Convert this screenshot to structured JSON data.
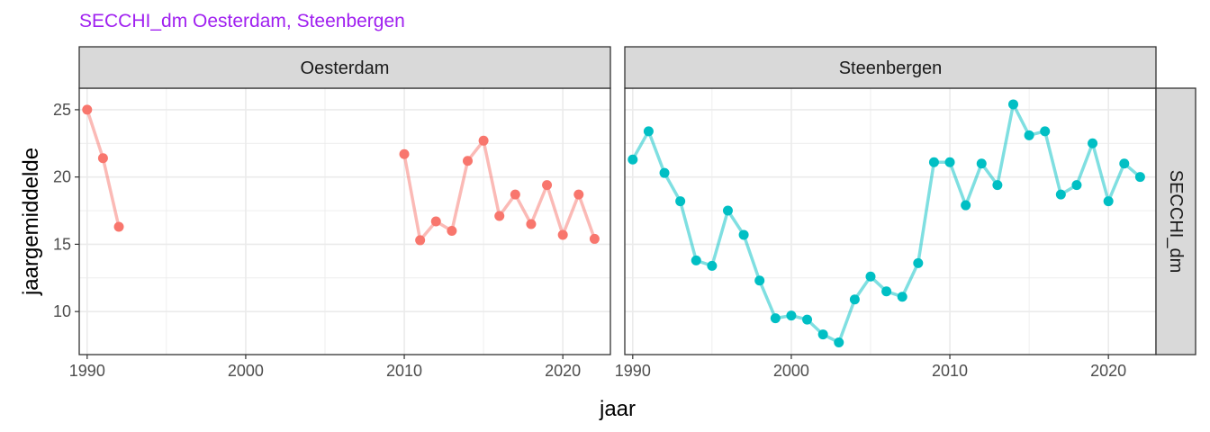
{
  "title": "SECCHI_dm Oesterdam, Steenbergen",
  "colors": {
    "title": "#a020f0",
    "oesterdam": "#f8766d",
    "steenbergen": "#00bfc4",
    "strip_fill": "#d9d9d9",
    "grid": "#ebebeb",
    "panel_border": "#333333"
  },
  "chart_data": {
    "type": "line",
    "xlabel": "jaar",
    "ylabel": "jaargemiddelde",
    "xlim": [
      1989.5,
      2023
    ],
    "ylim": [
      6.8,
      26.6
    ],
    "x_ticks": [
      1990,
      2000,
      2010,
      2020
    ],
    "x_tick_labels": [
      "1990",
      "2000",
      "2010",
      "2020"
    ],
    "y_ticks": [
      10,
      15,
      20,
      25
    ],
    "y_tick_labels": [
      "10",
      "15",
      "20",
      "25"
    ],
    "row_strip": "SECCHI_dm",
    "legend": "none",
    "grid": true,
    "series": [
      {
        "name": "Oesterdam",
        "segments": [
          {
            "x": [
              1990,
              1991,
              1992
            ],
            "y": [
              25.0,
              21.4,
              16.3
            ]
          },
          {
            "x": [
              2010,
              2011,
              2012,
              2013,
              2014,
              2015,
              2016,
              2017,
              2018,
              2019,
              2020,
              2021,
              2022
            ],
            "y": [
              21.7,
              15.3,
              16.7,
              16.0,
              21.2,
              22.7,
              17.1,
              18.7,
              16.5,
              19.4,
              15.7,
              18.7,
              15.4
            ]
          }
        ]
      },
      {
        "name": "Steenbergen",
        "segments": [
          {
            "x": [
              1990,
              1991,
              1992,
              1993,
              1994,
              1995,
              1996,
              1997,
              1998,
              1999,
              2000,
              2001,
              2002,
              2003,
              2004,
              2005,
              2006,
              2007,
              2008,
              2009,
              2010,
              2011,
              2012,
              2013,
              2014,
              2015,
              2016,
              2017,
              2018,
              2019,
              2020,
              2021,
              2022
            ],
            "y": [
              21.3,
              23.4,
              20.3,
              18.2,
              13.8,
              13.4,
              17.5,
              15.7,
              12.3,
              9.5,
              9.7,
              9.4,
              8.3,
              7.7,
              10.9,
              12.6,
              11.5,
              11.1,
              13.6,
              21.1,
              21.1,
              17.9,
              21.0,
              19.4,
              25.4,
              23.1,
              23.4,
              18.7,
              19.4,
              22.5,
              18.2,
              21.0,
              20.0
            ]
          }
        ]
      }
    ]
  }
}
